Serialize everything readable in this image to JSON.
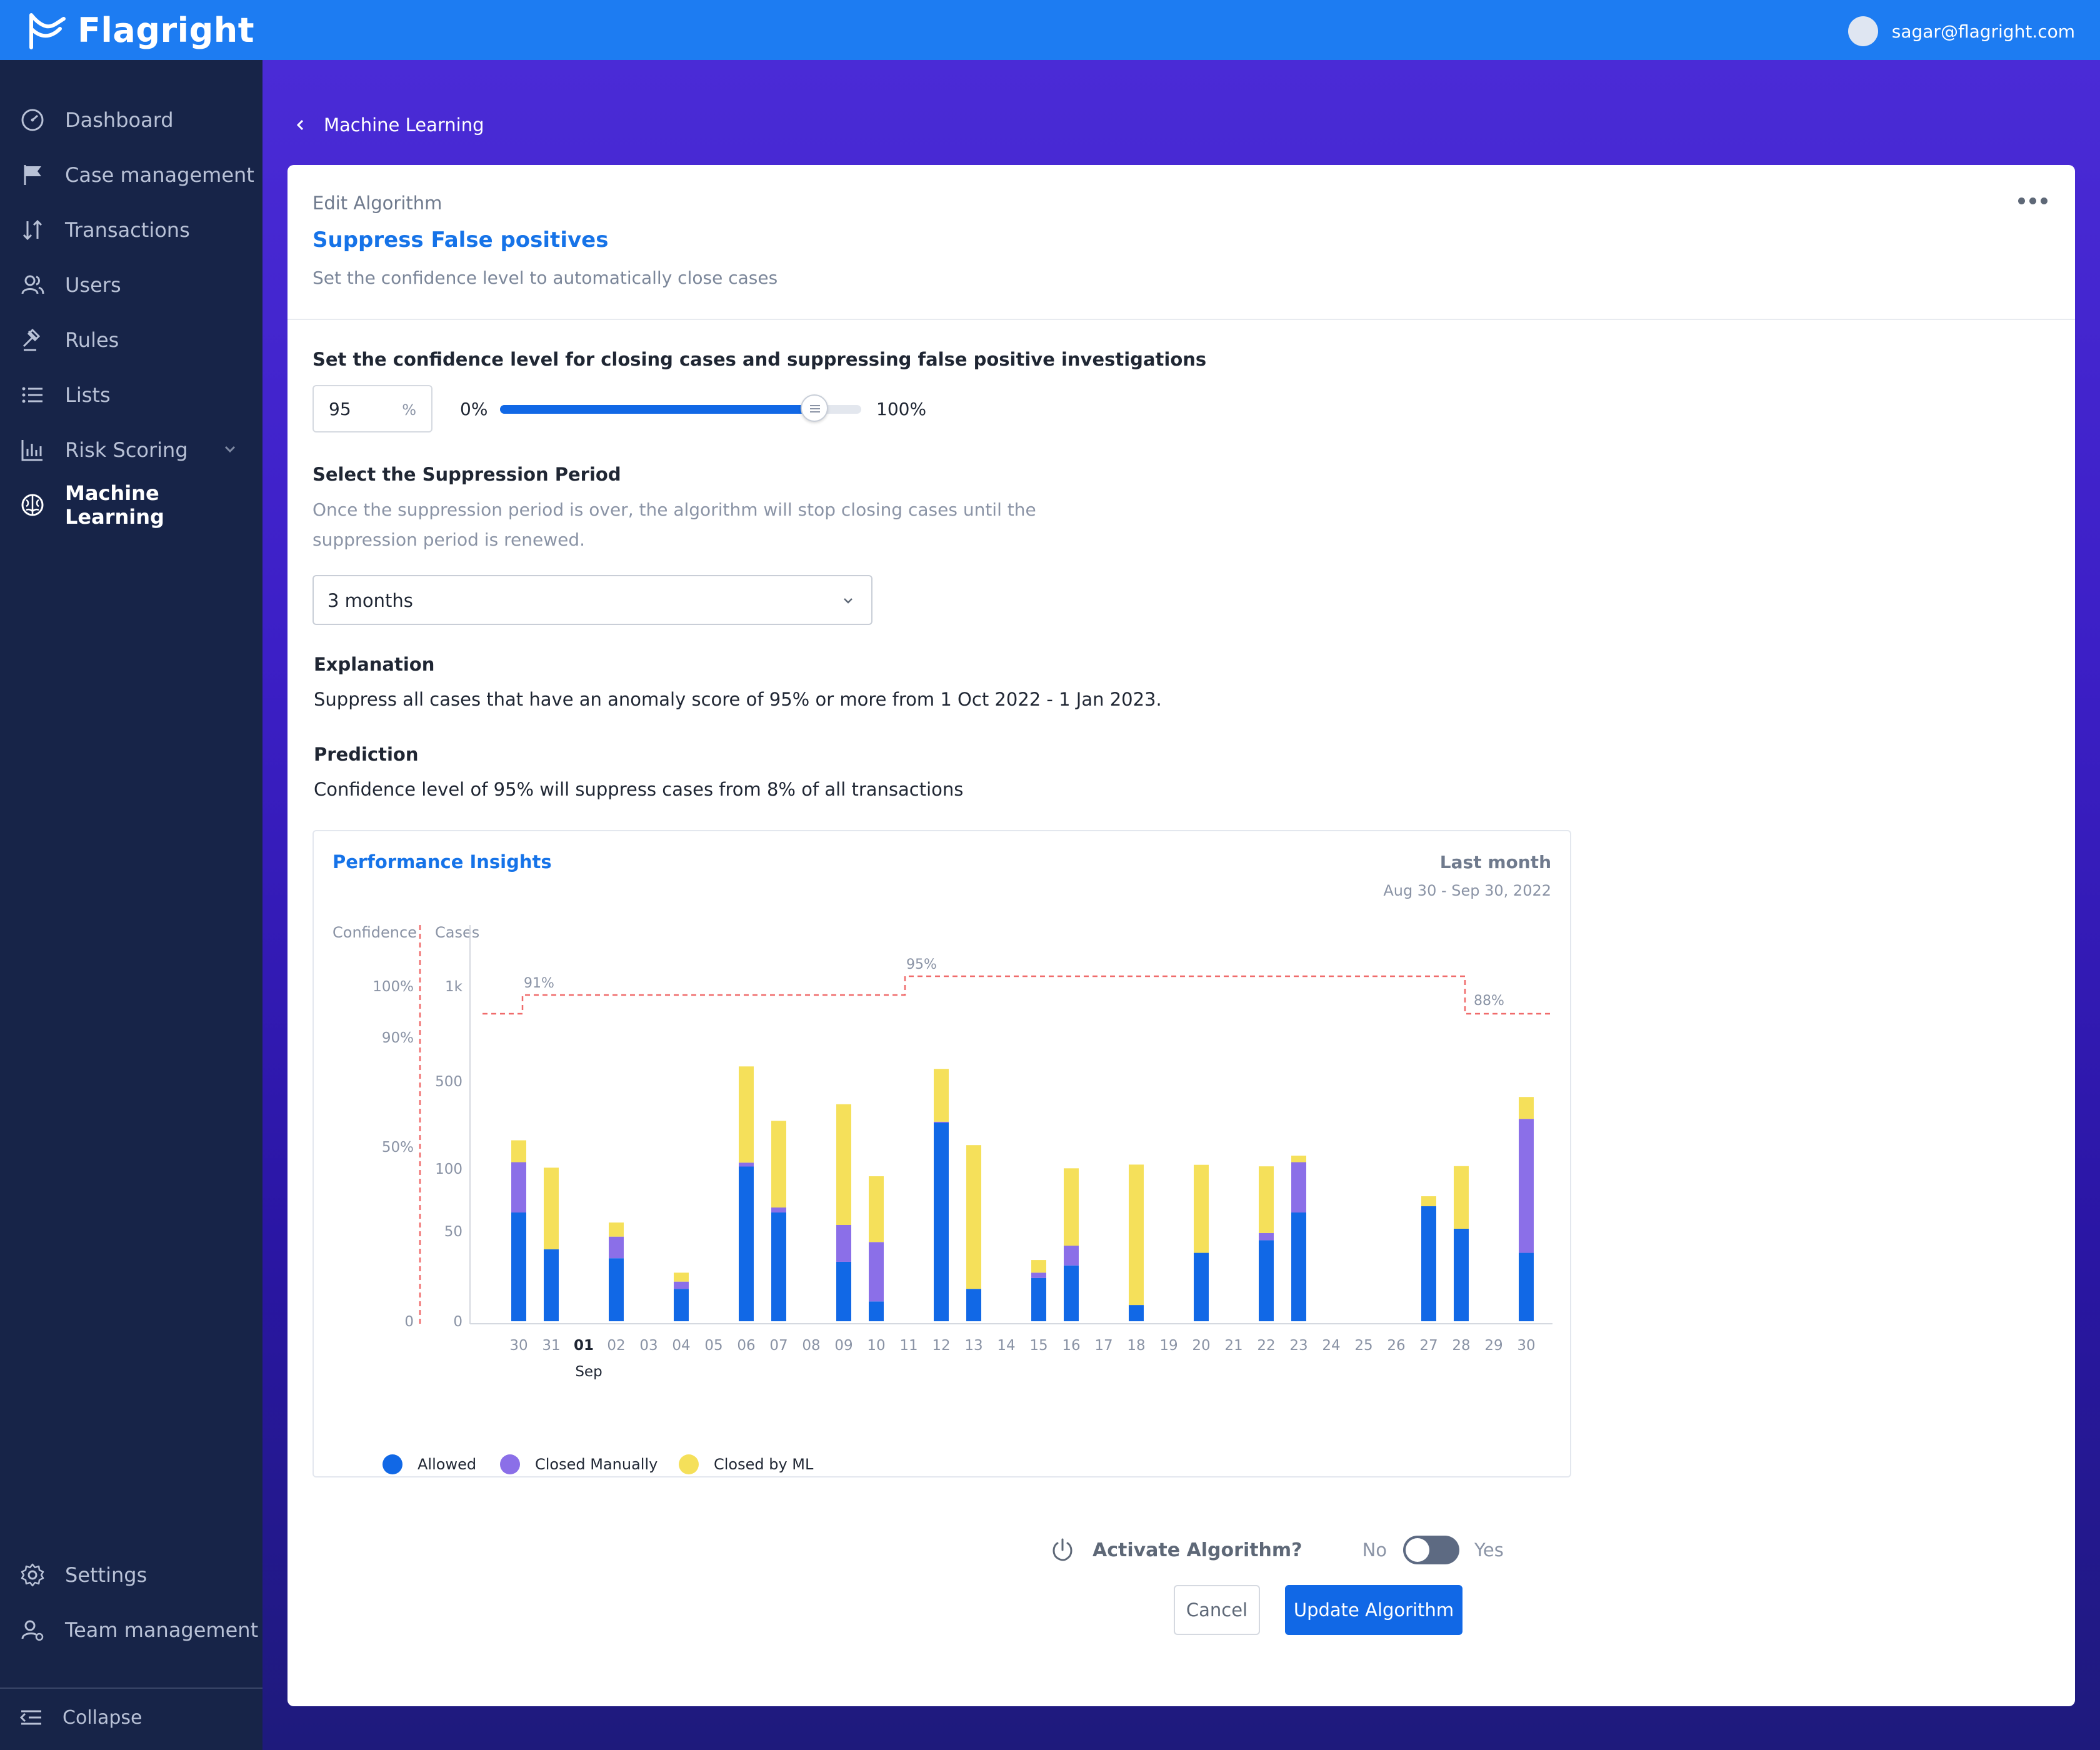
{
  "app": {
    "name": "Flagright"
  },
  "user": {
    "email": "sagar@flagright.com"
  },
  "sidebar": {
    "items": [
      {
        "label": "Dashboard",
        "icon": "dashboard-icon"
      },
      {
        "label": "Case management",
        "icon": "flag-icon"
      },
      {
        "label": "Transactions",
        "icon": "arrows-icon"
      },
      {
        "label": "Users",
        "icon": "users-icon"
      },
      {
        "label": "Rules",
        "icon": "gavel-icon"
      },
      {
        "label": "Lists",
        "icon": "list-icon"
      },
      {
        "label": "Risk Scoring",
        "icon": "bar-chart-icon"
      },
      {
        "label": "Machine Learning",
        "icon": "brain-icon",
        "active": true
      }
    ],
    "bottom": [
      {
        "label": "Settings",
        "icon": "gear-icon"
      },
      {
        "label": "Team management",
        "icon": "team-icon"
      }
    ],
    "collapse_label": "Collapse"
  },
  "breadcrumb": {
    "back_label": "Machine Learning"
  },
  "card": {
    "subtitle": "Edit Algorithm",
    "title": "Suppress False positives",
    "description": "Set the confidence level to automatically close cases"
  },
  "confidence": {
    "label": "Set the confidence level for closing cases and suppressing false positive investigations",
    "value": "95",
    "unit": "%",
    "min_label": "0%",
    "max_label": "100%",
    "slider_percent": 87
  },
  "period": {
    "label": "Select the Suppression Period",
    "help_line1": "Once the suppression period is over, the algorithm will stop closing cases until the",
    "help_line2": "suppression period is renewed.",
    "selected": "3 months"
  },
  "explanation": {
    "label": "Explanation",
    "text": "Suppress all cases that have an anomaly score of 95% or more from 1 Oct 2022 - 1 Jan 2023."
  },
  "prediction": {
    "label": "Prediction",
    "text": "Confidence level of 95% will suppress cases from 8% of all transactions"
  },
  "colors": {
    "allowed": "#1168e6",
    "closed_manually": "#8b6fe8",
    "closed_by_ml": "#f5e05a",
    "confidence_line": "#f06b6b",
    "accent": "#1673e8"
  },
  "chart_data": {
    "type": "bar",
    "title": "Performance Insights",
    "period_label": "Last month",
    "date_range": "Aug 30 - Sep 30, 2022",
    "left_axis_label": "Confidence",
    "right_axis_label": "Cases",
    "confidence_ticks": [
      "100%",
      "90%",
      "50%",
      "0"
    ],
    "case_ticks": [
      "1k",
      "500",
      "100",
      "50",
      "0"
    ],
    "categories": [
      "30",
      "31",
      "01",
      "02",
      "03",
      "04",
      "05",
      "06",
      "07",
      "08",
      "09",
      "10",
      "11",
      "12",
      "13",
      "14",
      "15",
      "16",
      "17",
      "18",
      "19",
      "20",
      "21",
      "22",
      "23",
      "24",
      "25",
      "26",
      "27",
      "28",
      "29",
      "30"
    ],
    "month_label": "Sep",
    "series": [
      {
        "name": "Allowed",
        "values": [
          65,
          40,
          0,
          35,
          0,
          18,
          0,
          110,
          65,
          0,
          33,
          11,
          0,
          310,
          18,
          0,
          24,
          31,
          0,
          9,
          0,
          38,
          0,
          45,
          65,
          0,
          0,
          0,
          70,
          52,
          0,
          38
        ]
      },
      {
        "name": "Closed Manually",
        "values": [
          65,
          0,
          0,
          12,
          0,
          4,
          0,
          18,
          4,
          0,
          22,
          33,
          0,
          5,
          0,
          0,
          3,
          11,
          0,
          0,
          0,
          0,
          0,
          4,
          65,
          0,
          0,
          0,
          0,
          0,
          0,
          290
        ]
      },
      {
        "name": "Closed by ML",
        "values": [
          100,
          65,
          0,
          10,
          0,
          5,
          0,
          450,
          250,
          0,
          340,
          50,
          0,
          250,
          190,
          0,
          7,
          60,
          0,
          110,
          0,
          80,
          0,
          62,
          30,
          0,
          0,
          0,
          8,
          60,
          0,
          100
        ]
      }
    ],
    "confidence_steps": [
      {
        "from": "30",
        "to": "31",
        "value": 91,
        "label": "91%"
      },
      {
        "from": "11",
        "to": "29",
        "value": 95,
        "label": "95%"
      },
      {
        "from": "29",
        "to": "30",
        "value": 88,
        "label": "88%"
      }
    ]
  },
  "activate": {
    "label": "Activate Algorithm?",
    "no": "No",
    "yes": "Yes",
    "on": false
  },
  "buttons": {
    "cancel": "Cancel",
    "update": "Update Algorithm"
  }
}
